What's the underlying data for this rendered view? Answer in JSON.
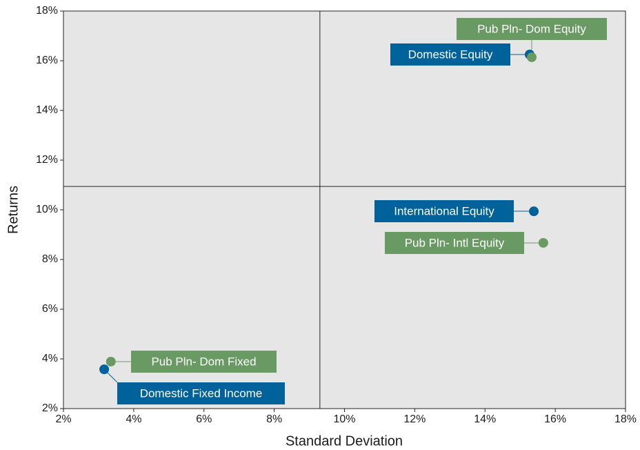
{
  "chart_data": {
    "type": "scatter",
    "xlabel": "Standard Deviation",
    "ylabel": "Returns",
    "points": [
      {
        "label": "Domestic Equity",
        "color": "#00629b",
        "x": 15.27,
        "y": 16.25
      },
      {
        "label": "Pub Pln- Dom Equity",
        "color": "#6a9a63",
        "x": 15.33,
        "y": 16.14
      },
      {
        "label": "International Equity",
        "color": "#00629b",
        "x": 15.39,
        "y": 9.94
      },
      {
        "label": "Pub Pln- Intl Equity",
        "color": "#6a9a63",
        "x": 15.66,
        "y": 8.67
      },
      {
        "label": "Domestic Fixed Income",
        "color": "#00629b",
        "x": 3.16,
        "y": 3.58
      },
      {
        "label": "Pub Pln- Dom Fixed",
        "color": "#6a9a63",
        "x": 3.35,
        "y": 3.89
      }
    ],
    "quadrant_x": 9.3,
    "quadrant_y": 10.94,
    "xlim": [
      2,
      18
    ],
    "ylim": [
      2,
      18
    ],
    "xticks": [
      {
        "value": 2,
        "label": "2%"
      },
      {
        "value": 4,
        "label": "4%"
      },
      {
        "value": 6,
        "label": "6%"
      },
      {
        "value": 8,
        "label": "8%"
      },
      {
        "value": 10,
        "label": "10%"
      },
      {
        "value": 12,
        "label": "12%"
      },
      {
        "value": 14,
        "label": "14%"
      },
      {
        "value": 16,
        "label": "16%"
      },
      {
        "value": 18,
        "label": "18%"
      }
    ],
    "yticks": [
      {
        "value": 2,
        "label": "2%"
      },
      {
        "value": 4,
        "label": "4%"
      },
      {
        "value": 6,
        "label": "6%"
      },
      {
        "value": 8,
        "label": "8%"
      },
      {
        "value": 10,
        "label": "10%"
      },
      {
        "value": 12,
        "label": "12%"
      },
      {
        "value": 14,
        "label": "14%"
      },
      {
        "value": 16,
        "label": "16%"
      },
      {
        "value": 18,
        "label": "18%"
      }
    ]
  }
}
